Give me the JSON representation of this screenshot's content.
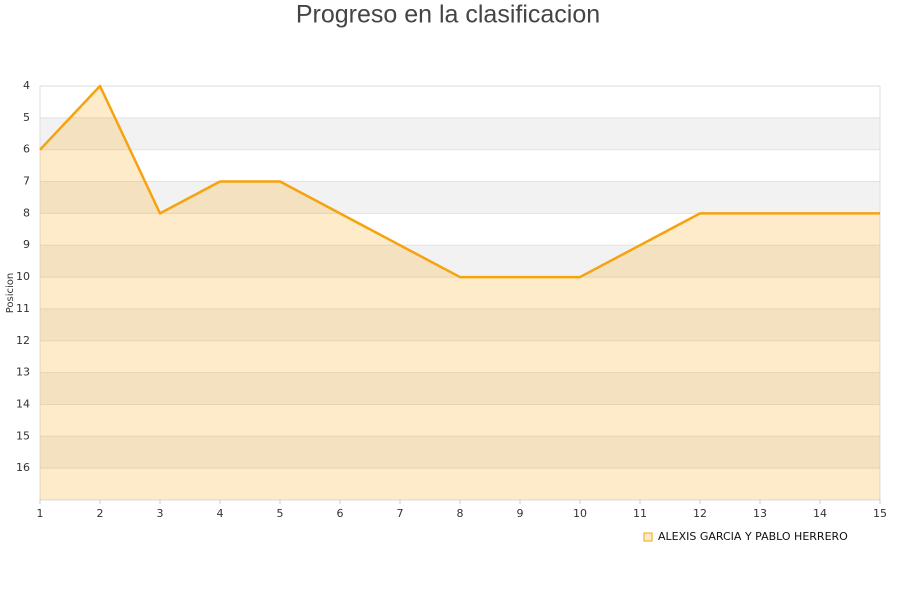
{
  "chart_data": {
    "type": "area-line",
    "title": "Progreso en la clasificacion",
    "y_label": "Posicion",
    "x": [
      1,
      2,
      3,
      4,
      5,
      6,
      7,
      8,
      9,
      10,
      11,
      12,
      13,
      14,
      15
    ],
    "series": [
      {
        "name": "ALEXIS GARCIA Y PABLO HERRERO",
        "color": "#f5a30f",
        "values": [
          6,
          4,
          8,
          7,
          7,
          8,
          9,
          10,
          10,
          10,
          9,
          8,
          8,
          8,
          8
        ]
      }
    ],
    "xlim": [
      1,
      15
    ],
    "xticks": [
      1,
      2,
      3,
      4,
      5,
      6,
      7,
      8,
      9,
      10,
      11,
      12,
      13,
      14,
      15
    ],
    "ylim": [
      17,
      4
    ],
    "yticks": [
      4,
      5,
      6,
      7,
      8,
      9,
      10,
      11,
      12,
      13,
      14,
      15,
      16
    ],
    "grid": true,
    "legend": "bottom-right"
  }
}
